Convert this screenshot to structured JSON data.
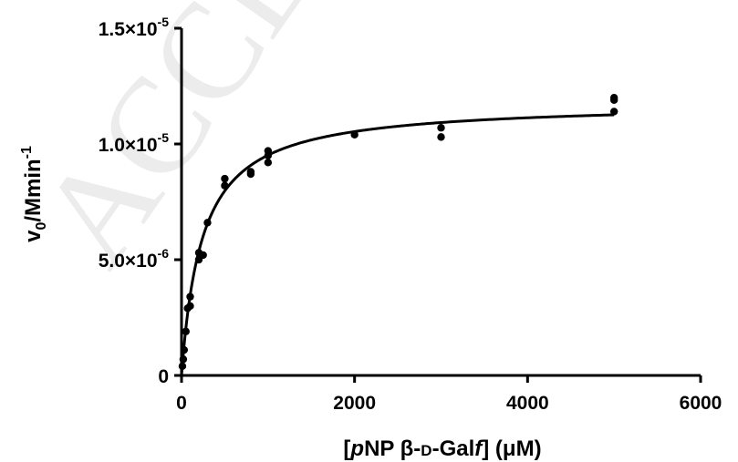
{
  "chart_data": {
    "type": "scatter",
    "title": "",
    "xlabel": {
      "prefix": "[",
      "italic_p": "p",
      "mid": "NP β-",
      "smallcaps_d": "D",
      "galpre": "-Gal",
      "italic_f": "f",
      "suffix": "] (μM)"
    },
    "ylabel": {
      "base": "v",
      "sub": "0",
      "mid": "/Mmin",
      "sup": "-1"
    },
    "xlim": [
      0,
      6000
    ],
    "ylim": [
      0,
      1.5e-05
    ],
    "x_ticks": [
      {
        "value": 0,
        "label": "0"
      },
      {
        "value": 2000,
        "label": "2000"
      },
      {
        "value": 4000,
        "label": "4000"
      },
      {
        "value": 6000,
        "label": "6000"
      }
    ],
    "y_ticks": [
      {
        "value": 0,
        "mant": "0",
        "exp": ""
      },
      {
        "value": 5e-06,
        "mant": "5.0×10",
        "exp": "-6"
      },
      {
        "value": 1e-05,
        "mant": "1.0×10",
        "exp": "-5"
      },
      {
        "value": 1.5e-05,
        "mant": "1.5×10",
        "exp": "-5"
      }
    ],
    "grid": false,
    "legend": "none",
    "series": [
      {
        "points": [
          {
            "x": 10,
            "y": 4e-07
          },
          {
            "x": 20,
            "y": 7e-07
          },
          {
            "x": 30,
            "y": 1.1e-06
          },
          {
            "x": 50,
            "y": 1.9e-06
          },
          {
            "x": 70,
            "y": 2.9e-06
          },
          {
            "x": 100,
            "y": 3e-06
          },
          {
            "x": 100,
            "y": 3.4e-06
          },
          {
            "x": 200,
            "y": 5e-06
          },
          {
            "x": 200,
            "y": 5.3e-06
          },
          {
            "x": 250,
            "y": 5.2e-06
          },
          {
            "x": 300,
            "y": 6.6e-06
          },
          {
            "x": 500,
            "y": 8.2e-06
          },
          {
            "x": 500,
            "y": 8.5e-06
          },
          {
            "x": 800,
            "y": 8.7e-06
          },
          {
            "x": 800,
            "y": 8.8e-06
          },
          {
            "x": 1000,
            "y": 9.2e-06
          },
          {
            "x": 1000,
            "y": 9.5e-06
          },
          {
            "x": 1000,
            "y": 9.7e-06
          },
          {
            "x": 2000,
            "y": 1.04e-05
          },
          {
            "x": 3000,
            "y": 1.03e-05
          },
          {
            "x": 3000,
            "y": 1.07e-05
          },
          {
            "x": 5000,
            "y": 1.14e-05
          },
          {
            "x": 5000,
            "y": 1.19e-05
          },
          {
            "x": 5000,
            "y": 1.2e-05
          }
        ],
        "fit": {
          "model": "michaelis-menten",
          "vmax": 1.18e-05,
          "km": 240
        }
      }
    ],
    "watermark": "ACCEPTED",
    "colors": {
      "marks": "#000000",
      "axis": "#000000",
      "watermark": "#ececec"
    }
  }
}
